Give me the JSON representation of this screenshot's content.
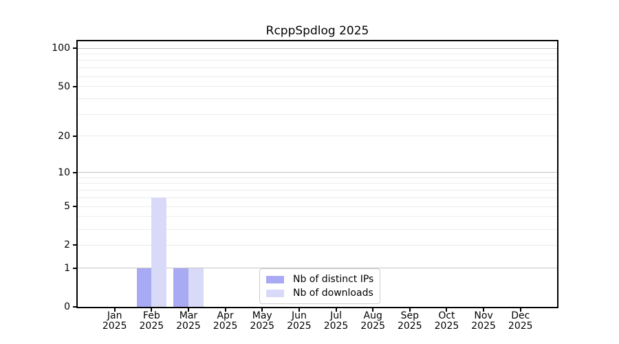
{
  "chart_data": {
    "type": "bar",
    "title": "RcppSpdlog 2025",
    "year_label": "2025",
    "categories": [
      "Jan",
      "Feb",
      "Mar",
      "Apr",
      "May",
      "Jun",
      "Jul",
      "Aug",
      "Sep",
      "Oct",
      "Nov",
      "Dec"
    ],
    "series": [
      {
        "name": "Nb of distinct IPs",
        "color": "#a9aaf4",
        "values": [
          0,
          1,
          1,
          0,
          0,
          0,
          0,
          0,
          0,
          0,
          0,
          0
        ]
      },
      {
        "name": "Nb of downloads",
        "color": "#d9daf8",
        "values": [
          0,
          6,
          1,
          0,
          0,
          0,
          0,
          0,
          0,
          0,
          0,
          0
        ]
      }
    ],
    "xlabel": "",
    "ylabel": "",
    "yscale": "log1p",
    "ylim": [
      0,
      109
    ],
    "y_ticks": [
      0,
      1,
      2,
      5,
      10,
      20,
      50,
      100
    ],
    "y_major_gridlines": [
      1,
      10,
      100
    ],
    "y_minor_gridlines": [
      2,
      3,
      4,
      5,
      6,
      7,
      8,
      9,
      20,
      30,
      40,
      50,
      60,
      70,
      80,
      90
    ],
    "grid": "horizontal",
    "legend_position": "inside lower center"
  },
  "legend": {
    "items": [
      {
        "label": "Nb of distinct IPs",
        "color": "#a9aaf4"
      },
      {
        "label": "Nb of downloads",
        "color": "#d9daf8"
      }
    ]
  },
  "colors": {
    "background": "#ffffff",
    "spine": "#000000",
    "grid_major": "#c4c4c4",
    "grid_minor": "#ececec",
    "text": "#000000"
  }
}
